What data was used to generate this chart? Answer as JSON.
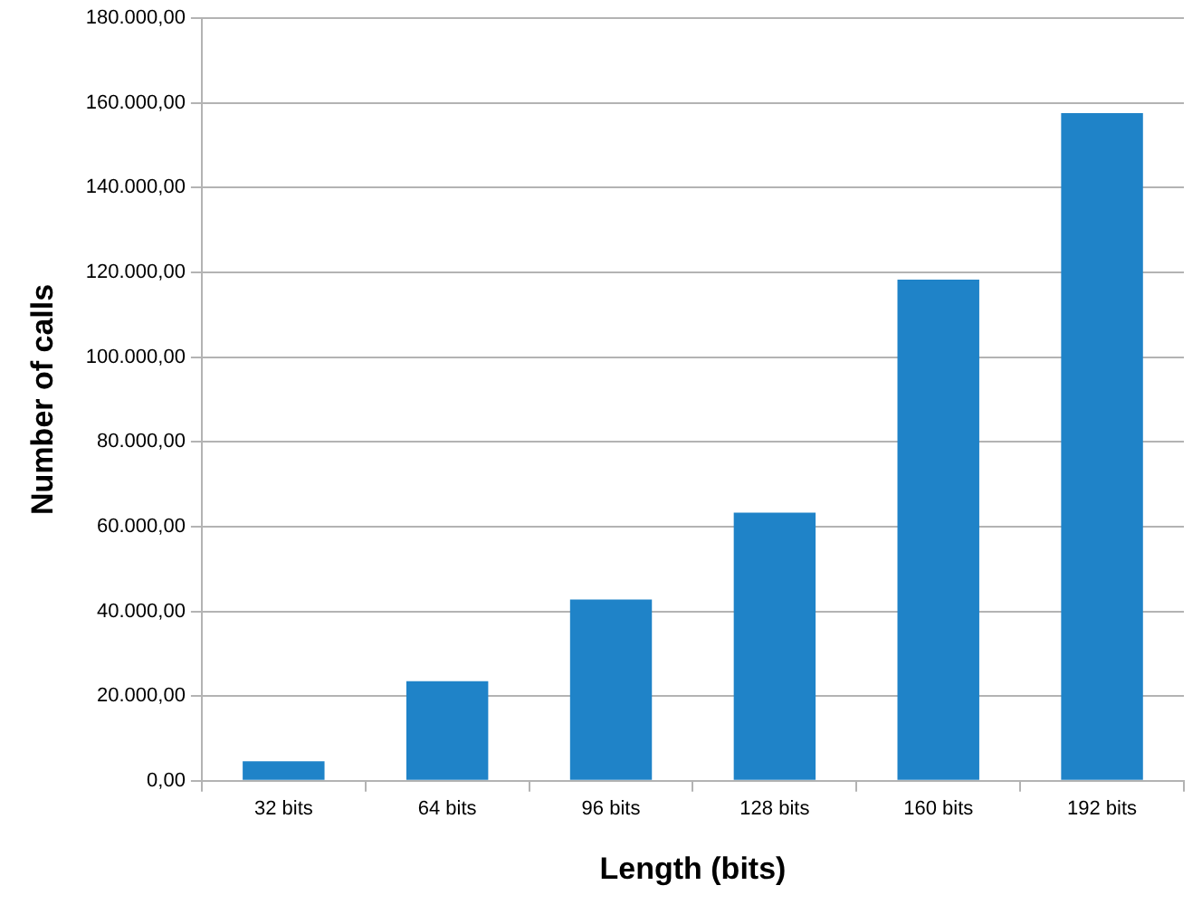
{
  "chart_data": {
    "type": "bar",
    "xlabel": "Length (bits)",
    "ylabel": "Number of calls",
    "categories": [
      "32 bits",
      "64 bits",
      "96 bits",
      "128 bits",
      "160 bits",
      "192 bits"
    ],
    "values": [
      4600,
      23500,
      42800,
      63300,
      118300,
      157600
    ],
    "color": "#1f83c8",
    "ylim": [
      0,
      180000
    ],
    "yticks": [
      {
        "value": 0,
        "label": "0,00"
      },
      {
        "value": 20000,
        "label": "20.000,00"
      },
      {
        "value": 40000,
        "label": "40.000,00"
      },
      {
        "value": 60000,
        "label": "60.000,00"
      },
      {
        "value": 80000,
        "label": "80.000,00"
      },
      {
        "value": 100000,
        "label": "100.000,00"
      },
      {
        "value": 120000,
        "label": "120.000,00"
      },
      {
        "value": 140000,
        "label": "140.000,00"
      },
      {
        "value": 160000,
        "label": "160.000,00"
      },
      {
        "value": 180000,
        "label": "180.000,00"
      }
    ],
    "grid": "y",
    "legend": false
  }
}
